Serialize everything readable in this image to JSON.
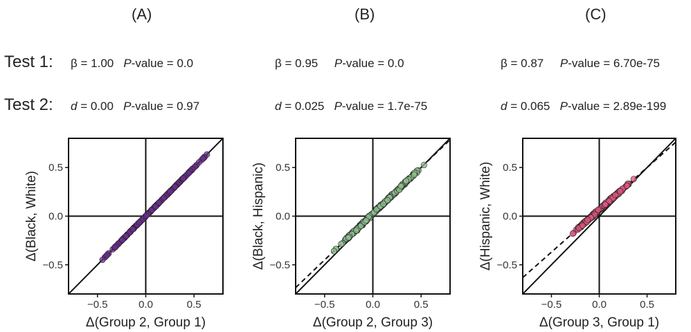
{
  "row_labels": {
    "test1": "Test 1:",
    "test2": "Test 2:"
  },
  "stats": [
    {
      "beta_label": "β = 1.00",
      "p1_prefix": "P",
      "p1_value": "-value = 0.0",
      "d_prefix": "d",
      "d_value": " = 0.00",
      "p2_prefix": "P",
      "p2_value": "-value = 0.97"
    },
    {
      "beta_label": "β = 0.95",
      "p1_prefix": "P",
      "p1_value": "-value = 0.0",
      "d_prefix": "d",
      "d_value": " = 0.025",
      "p2_prefix": "P",
      "p2_value": "-value = 1.7e-75"
    },
    {
      "beta_label": "β = 0.87",
      "p1_prefix": "P",
      "p1_value": "-value = 6.70e-75",
      "d_prefix": "d",
      "d_value": " = 0.065",
      "p2_prefix": "P",
      "p2_value": "-value = 2.89e-199"
    }
  ],
  "chart_data": [
    {
      "panel": "(A)",
      "type": "scatter",
      "xlabel": "Δ(Group 2, Group 1)",
      "ylabel": "Δ(Black, White)",
      "xlim": [
        -0.8,
        0.8
      ],
      "ylim": [
        -0.8,
        0.8
      ],
      "ticks": [
        -0.5,
        0.0,
        0.5
      ],
      "xtick_labels": [
        "−0.5",
        "0.0",
        "0.5"
      ],
      "ytick_labels": [
        "−0.5",
        "0.0",
        "0.5"
      ],
      "point_color": "#6b2d8f",
      "point_range": [
        -0.45,
        0.65
      ],
      "fit": {
        "slope": 1.0,
        "intercept": 0.0
      },
      "identity_line": true
    },
    {
      "panel": "(B)",
      "type": "scatter",
      "xlabel": "Δ(Group 2, Group 3)",
      "ylabel": "Δ(Black, Hispanic)",
      "xlim": [
        -0.8,
        0.8
      ],
      "ylim": [
        -0.8,
        0.8
      ],
      "ticks": [
        -0.5,
        0.0,
        0.5
      ],
      "xtick_labels": [
        "−0.5",
        "0.0",
        "0.5"
      ],
      "ytick_labels": [
        "−0.5",
        "0.0",
        "0.5"
      ],
      "point_color": "#8fbf8f",
      "point_range": [
        -0.42,
        0.55
      ],
      "fit": {
        "slope": 0.95,
        "intercept": 0.025
      },
      "identity_line": true
    },
    {
      "panel": "(C)",
      "type": "scatter",
      "xlabel": "Δ(Group 3, Group 1)",
      "ylabel": "Δ(Hispanic, White)",
      "xlim": [
        -0.8,
        0.8
      ],
      "ylim": [
        -0.8,
        0.8
      ],
      "ticks": [
        -0.5,
        0.0,
        0.5
      ],
      "xtick_labels": [
        "−0.5",
        "0.0",
        "0.5"
      ],
      "ytick_labels": [
        "−0.5",
        "0.0",
        "0.5"
      ],
      "point_color": "#e0577f",
      "point_range": [
        -0.3,
        0.36
      ],
      "fit": {
        "slope": 0.87,
        "intercept": 0.065
      },
      "identity_line": true
    }
  ]
}
